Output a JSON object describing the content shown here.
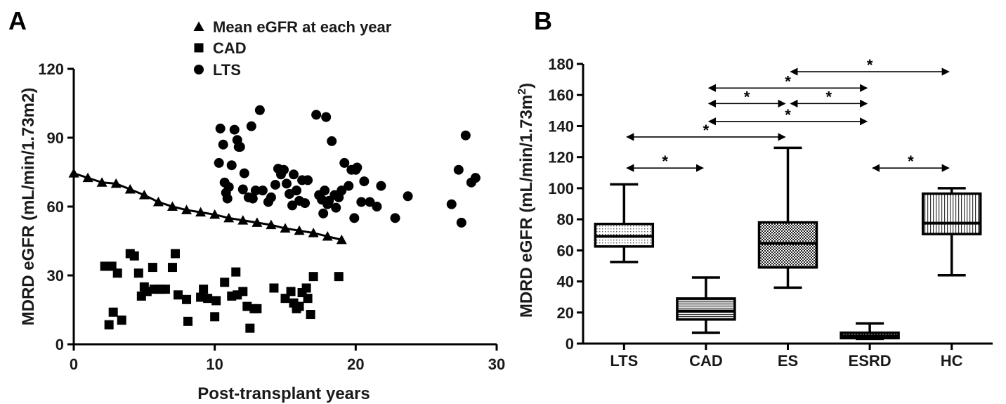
{
  "chart_data": [
    {
      "panel": "A",
      "type": "scatter",
      "xlabel": "Post-transplant years",
      "ylabel": "MDRD eGFR (mL/min/1.73m2)",
      "xlim": [
        0,
        30
      ],
      "ylim": [
        0,
        120
      ],
      "xticks": [
        "0",
        "10",
        "20",
        "30"
      ],
      "yticks": [
        "0",
        "30",
        "60",
        "90",
        "120"
      ],
      "legend_position": "top-center",
      "series": [
        {
          "name": "Mean eGFR at each year",
          "marker": "triangle",
          "line": true,
          "x": [
            0,
            1,
            2,
            3,
            4,
            5,
            6,
            7,
            8,
            9,
            10,
            11,
            12,
            13,
            14,
            15,
            16,
            17,
            18,
            19
          ],
          "y": [
            74.5,
            72.5,
            70.5,
            70,
            67.5,
            65,
            62,
            60,
            58.5,
            57.5,
            56.5,
            55,
            54,
            53,
            52,
            50.5,
            49.5,
            48.5,
            47,
            45.5
          ]
        },
        {
          "name": "CAD",
          "marker": "square",
          "x": [
            2.2,
            2.5,
            2.7,
            2.8,
            3.1,
            3.4,
            4.0,
            4.3,
            4.6,
            4.8,
            5.0,
            5.2,
            5.6,
            5.7,
            6.0,
            6.2,
            6.5,
            7.0,
            7.2,
            7.4,
            8.0,
            8.1,
            9.0,
            9.2,
            9.5,
            10.0,
            10.1,
            10.7,
            11.2,
            11.5,
            11.6,
            12.0,
            12.3,
            12.5,
            12.8,
            13.0,
            14.2,
            15.0,
            15.4,
            15.6,
            15.8,
            16.0,
            16.2,
            16.5,
            16.6,
            16.8,
            17.0,
            18.8
          ],
          "y": [
            34,
            8.5,
            34,
            14,
            31,
            10.5,
            39.5,
            38.5,
            31,
            21,
            25,
            23,
            33.5,
            24,
            24,
            24,
            24,
            33.5,
            39.5,
            21.5,
            19.5,
            10,
            20.5,
            24,
            20,
            12,
            19,
            27,
            21,
            31.5,
            21.5,
            23,
            16.5,
            7,
            15.5,
            15.5,
            24.5,
            20,
            23,
            18,
            15.5,
            16.5,
            22.5,
            24.5,
            20,
            13,
            29.5,
            29.5
          ]
        },
        {
          "name": "LTS",
          "marker": "circle",
          "x": [
            10.3,
            10.4,
            10.6,
            10.7,
            10.8,
            10.9,
            11.0,
            11.2,
            11.4,
            11.6,
            11.7,
            11.8,
            12.0,
            12.1,
            12.4,
            12.6,
            12.7,
            12.9,
            13.2,
            13.4,
            13.8,
            14.0,
            14.3,
            14.5,
            14.7,
            14.9,
            15.1,
            15.3,
            15.5,
            15.6,
            15.8,
            16.0,
            16.2,
            16.4,
            16.6,
            17.2,
            17.4,
            17.6,
            17.7,
            17.8,
            17.9,
            18.0,
            18.1,
            18.3,
            18.5,
            18.6,
            18.8,
            19.0,
            19.2,
            19.5,
            19.7,
            19.9,
            20.0,
            20.1,
            20.4,
            20.6,
            21.0,
            21.5,
            21.8,
            22.8,
            23.7,
            26.8,
            27.3,
            27.5,
            27.8,
            28.2,
            28.5
          ],
          "y": [
            79,
            94,
            87,
            70.5,
            66,
            63.5,
            68.5,
            78,
            93.5,
            89,
            86,
            86,
            67.5,
            74.5,
            64,
            95,
            63.5,
            67,
            102,
            67,
            62,
            64,
            69.5,
            76.5,
            74,
            76,
            70,
            65.5,
            60.5,
            74,
            67,
            62.5,
            71.5,
            61.5,
            71.5,
            100,
            65,
            63,
            57,
            67,
            99,
            61,
            62.5,
            88.5,
            65,
            59.5,
            64,
            67,
            79,
            69,
            76,
            55,
            76,
            77,
            62,
            71,
            62,
            60,
            69,
            55,
            64.5,
            61,
            76,
            53,
            91,
            70.5,
            72.5
          ]
        }
      ]
    },
    {
      "panel": "B",
      "type": "box",
      "ylabel": "MDRD eGFR (mL/min/1.73m",
      "ylabel_superscript": "2",
      "ylabel_close": ")",
      "ylim": [
        0,
        180
      ],
      "yticks": [
        "0",
        "20",
        "40",
        "60",
        "80",
        "100",
        "120",
        "140",
        "160",
        "180"
      ],
      "categories": [
        "LTS",
        "CAD",
        "ES",
        "ESRD",
        "HC"
      ],
      "boxes": [
        {
          "category": "LTS",
          "min": 52.5,
          "q1": 62.5,
          "median": 69,
          "q3": 77,
          "max": 102.5,
          "pattern": "dots"
        },
        {
          "category": "CAD",
          "min": 7,
          "q1": 15.5,
          "median": 21,
          "q3": 29,
          "max": 42.5,
          "pattern": "hstripes"
        },
        {
          "category": "ES",
          "min": 36,
          "q1": 49,
          "median": 64.5,
          "q3": 78,
          "max": 126,
          "pattern": "checker"
        },
        {
          "category": "ESRD",
          "min": 3,
          "q1": 3.5,
          "median": 5,
          "q3": 7,
          "max": 13,
          "pattern": "checker"
        },
        {
          "category": "HC",
          "min": 44,
          "q1": 70.5,
          "median": 77.5,
          "q3": 96.5,
          "max": 100,
          "pattern": "vstripes"
        }
      ],
      "significance": [
        {
          "from": "LTS",
          "to": "CAD",
          "y": 113,
          "label": "*"
        },
        {
          "from": "LTS",
          "to": "ES",
          "y": 133,
          "label": "*"
        },
        {
          "from": "CAD",
          "to": "ESRD",
          "y": 143,
          "label": "*"
        },
        {
          "from": "CAD",
          "to": "ES",
          "y": 154.5,
          "label": "*"
        },
        {
          "from": "ES",
          "to": "ESRD",
          "y": 154.5,
          "label": "*"
        },
        {
          "from": "CAD",
          "to": "ESRD",
          "y": 164.5,
          "label": "*"
        },
        {
          "from": "ES",
          "to": "HC",
          "y": 175,
          "label": "*"
        },
        {
          "from": "ESRD",
          "to": "HC",
          "y": 113,
          "label": "*"
        }
      ]
    }
  ]
}
